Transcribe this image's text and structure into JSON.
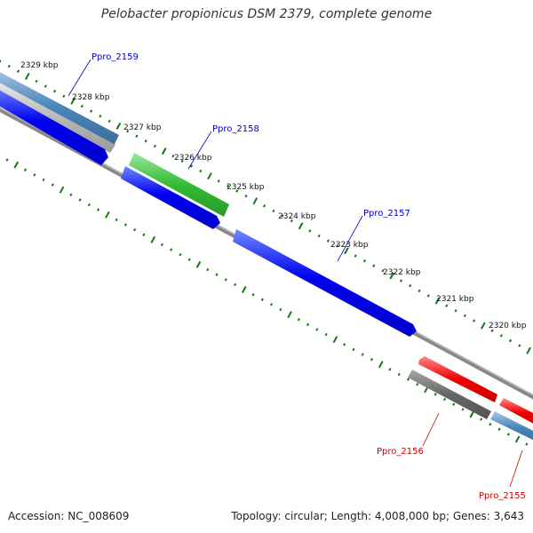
{
  "title": "Pelobacter propionicus DSM 2379, complete genome",
  "footer": {
    "accession": "Accession: NC_008609",
    "topology": "Topology: circular; Length: 4,008,000 bp; Genes: 3,643"
  },
  "colors": {
    "forward_cds": "#0000ee",
    "reverse_cds": "#ee0000",
    "rna_gene": "#33bb33",
    "pseudo_gene": "#666666",
    "other_gene": "#4a86b8",
    "ticks": "#117711",
    "backbone": "#888888",
    "label_forward": "#0000bb",
    "label_reverse": "#cc0000"
  },
  "kbp_labels": [
    "2329 kbp",
    "2328 kbp",
    "2327 kbp",
    "2326 kbp",
    "2325 kbp",
    "2324 kbp",
    "2323 kbp",
    "2322 kbp",
    "2321 kbp",
    "2320 kbp"
  ],
  "gene_labels": [
    {
      "text": "Ppro_2159",
      "strand": "forward"
    },
    {
      "text": "Ppro_2158",
      "strand": "forward"
    },
    {
      "text": "Ppro_2157",
      "strand": "forward"
    },
    {
      "text": "Ppro_2156",
      "strand": "reverse"
    },
    {
      "text": "Ppro_2155",
      "strand": "reverse"
    }
  ]
}
